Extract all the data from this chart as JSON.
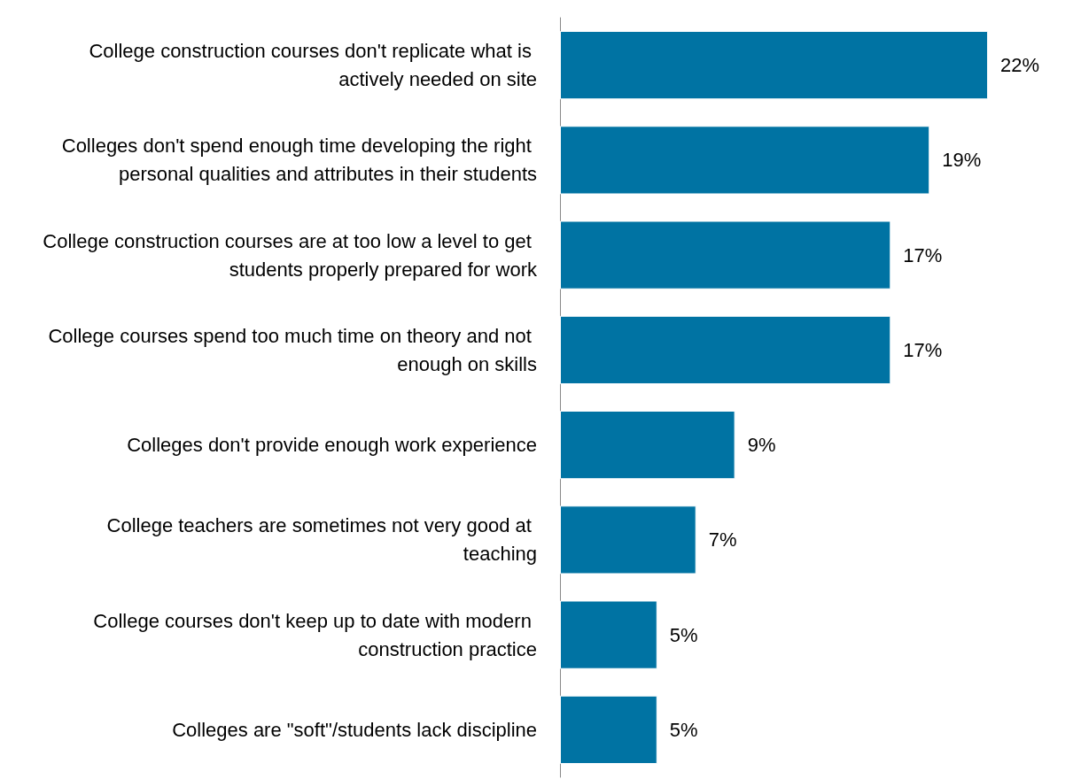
{
  "chart_data": {
    "type": "bar",
    "orientation": "horizontal",
    "categories": [
      "College construction courses don't replicate what is actively needed on site",
      "Colleges don't spend enough time developing the right personal qualities and attributes in their students",
      "College construction courses are at too low a level to get students properly prepared for work",
      "College courses spend too much time on theory and not enough on skills",
      "Colleges don't provide enough work experience",
      "College teachers are sometimes not very good at teaching",
      "College courses don't keep up to date with modern construction practice",
      "Colleges are \"soft\"/students lack discipline"
    ],
    "values": [
      22,
      19,
      17,
      17,
      9,
      7,
      5,
      5
    ],
    "value_labels": [
      "22%",
      "19%",
      "17%",
      "17%",
      "9%",
      "7%",
      "5%",
      "5%"
    ],
    "color": "#0073a3",
    "tick_labels": "y"
  }
}
